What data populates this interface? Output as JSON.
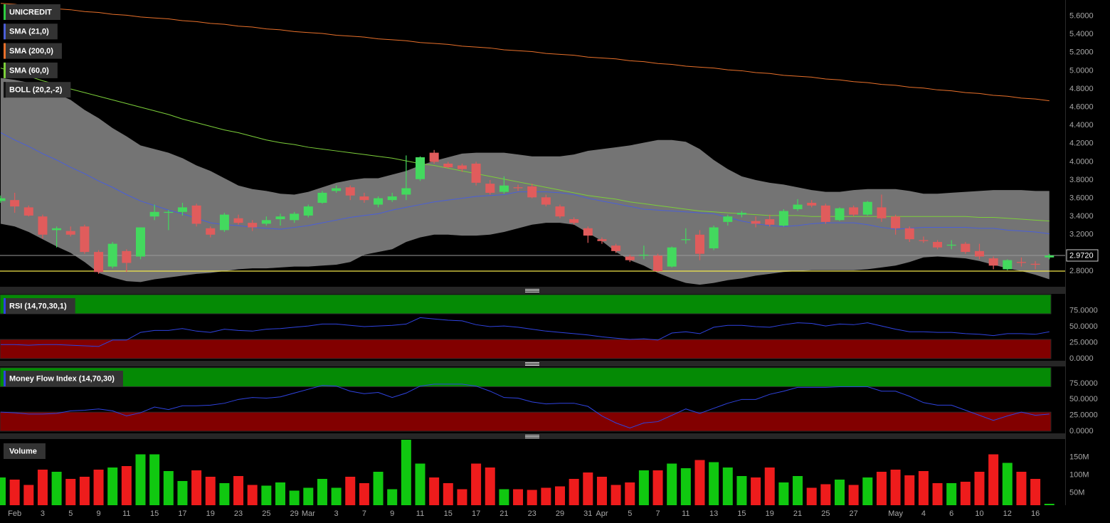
{
  "chart_data": [
    {
      "type": "candlestick",
      "name": "UNICREDIT",
      "color": "#2ecc40",
      "up_color": "#43d95e",
      "down_color": "#e05c5c",
      "categories": [
        null,
        "Feb",
        null,
        "3",
        null,
        "5",
        null,
        "9",
        null,
        "11",
        null,
        "15",
        null,
        "17",
        null,
        "19",
        null,
        "23",
        null,
        "25",
        null,
        "29",
        "Mar",
        null,
        "3",
        null,
        "7",
        null,
        "9",
        null,
        "11",
        null,
        "15",
        null,
        "17",
        null,
        "21",
        null,
        "23",
        null,
        "29",
        null,
        "31",
        "Apr",
        null,
        "5",
        null,
        "7",
        null,
        "11",
        null,
        "13",
        null,
        "15",
        null,
        "19",
        null,
        "21",
        null,
        "25",
        null,
        "27",
        null,
        null,
        "May",
        null,
        "4",
        null,
        "6",
        null,
        "10",
        null,
        "12",
        null,
        "16",
        null
      ],
      "open": [
        3.57,
        3.58,
        3.5,
        3.4,
        3.25,
        3.24,
        3.29,
        3.01,
        2.85,
        3.02,
        2.96,
        3.4,
        3.44,
        3.45,
        3.52,
        3.27,
        3.25,
        3.38,
        3.33,
        3.32,
        3.37,
        3.36,
        3.41,
        3.55,
        3.68,
        3.72,
        3.62,
        3.53,
        3.58,
        3.64,
        3.81,
        4.1,
        3.98,
        3.96,
        3.98,
        3.76,
        3.67,
        3.72,
        3.73,
        3.61,
        3.51,
        3.37,
        3.27,
        3.15,
        3.08,
        2.96,
        2.97,
        2.97,
        2.85,
        3.14,
        3.2,
        3.05,
        3.34,
        3.42,
        3.35,
        3.37,
        3.3,
        3.48,
        3.55,
        3.52,
        3.36,
        3.5,
        3.42,
        3.5,
        3.4,
        3.27,
        3.14,
        3.12,
        3.08,
        3.1,
        3.02,
        2.94,
        2.82,
        2.9,
        2.88,
        2.95
      ],
      "high": [
        3.63,
        3.66,
        3.52,
        3.42,
        3.29,
        3.29,
        3.31,
        3.03,
        3.12,
        3.04,
        3.28,
        3.53,
        3.47,
        3.55,
        3.54,
        3.29,
        3.44,
        3.42,
        3.36,
        3.4,
        3.43,
        3.45,
        3.53,
        3.68,
        3.74,
        3.74,
        3.66,
        3.62,
        3.66,
        4.07,
        4.06,
        4.13,
        4.0,
        3.98,
        4.0,
        3.8,
        3.84,
        3.75,
        3.76,
        3.64,
        3.53,
        3.39,
        3.29,
        3.17,
        3.1,
        2.98,
        3.08,
        2.99,
        3.07,
        3.27,
        3.25,
        3.3,
        3.42,
        3.46,
        3.4,
        3.42,
        3.48,
        3.59,
        3.58,
        3.54,
        3.5,
        3.52,
        3.57,
        3.64,
        3.42,
        3.29,
        3.18,
        3.14,
        3.14,
        3.12,
        3.1,
        2.96,
        2.93,
        2.95,
        2.91,
        2.99
      ],
      "low": [
        3.55,
        3.44,
        3.4,
        3.16,
        3.06,
        3.18,
        2.99,
        2.77,
        2.83,
        2.79,
        2.93,
        3.36,
        3.25,
        3.41,
        3.29,
        3.17,
        3.23,
        3.31,
        3.24,
        3.3,
        3.3,
        3.33,
        3.39,
        3.54,
        3.66,
        3.58,
        3.55,
        3.5,
        3.56,
        3.58,
        3.79,
        3.98,
        3.93,
        3.89,
        3.74,
        3.64,
        3.65,
        3.68,
        3.6,
        3.51,
        3.38,
        3.31,
        3.11,
        3.1,
        3.0,
        2.9,
        2.93,
        2.79,
        2.84,
        3.1,
        2.92,
        3.03,
        3.3,
        3.39,
        3.28,
        3.29,
        3.29,
        3.46,
        3.5,
        3.32,
        3.35,
        3.4,
        3.41,
        3.34,
        3.2,
        3.12,
        3.11,
        3.04,
        3.04,
        2.99,
        2.93,
        2.82,
        2.81,
        2.85,
        2.82,
        2.93
      ],
      "close": [
        3.6,
        3.51,
        3.41,
        3.2,
        3.27,
        3.2,
        3.01,
        2.79,
        3.1,
        2.89,
        3.28,
        3.45,
        3.45,
        3.5,
        3.32,
        3.2,
        3.42,
        3.33,
        3.28,
        3.36,
        3.4,
        3.43,
        3.51,
        3.66,
        3.71,
        3.63,
        3.58,
        3.6,
        3.62,
        3.71,
        4.05,
        4.0,
        3.94,
        3.92,
        3.77,
        3.66,
        3.74,
        3.71,
        3.61,
        3.53,
        3.4,
        3.33,
        3.19,
        3.13,
        3.02,
        2.92,
        2.98,
        2.8,
        3.06,
        3.15,
        2.99,
        3.28,
        3.4,
        3.44,
        3.32,
        3.31,
        3.46,
        3.53,
        3.52,
        3.34,
        3.49,
        3.42,
        3.56,
        3.38,
        3.27,
        3.15,
        3.13,
        3.06,
        3.09,
        3.01,
        2.96,
        2.86,
        2.92,
        2.89,
        2.87,
        2.972
      ],
      "overlays": [
        {
          "name": "SMA (21,0)",
          "color": "#4a5fd8",
          "values": [
            4.32,
            4.24,
            4.17,
            4.09,
            4.02,
            3.94,
            3.87,
            3.79,
            3.72,
            3.64,
            3.57,
            3.52,
            3.47,
            3.43,
            3.38,
            3.33,
            3.31,
            3.3,
            3.28,
            3.27,
            3.26,
            3.28,
            3.3,
            3.33,
            3.36,
            3.39,
            3.41,
            3.43,
            3.47,
            3.5,
            3.53,
            3.56,
            3.58,
            3.6,
            3.62,
            3.63,
            3.64,
            3.67,
            3.67,
            3.67,
            3.66,
            3.64,
            3.6,
            3.57,
            3.54,
            3.51,
            3.48,
            3.47,
            3.46,
            3.45,
            3.44,
            3.43,
            3.39,
            3.35,
            3.32,
            3.3,
            3.29,
            3.3,
            3.32,
            3.33,
            3.33,
            3.33,
            3.31,
            3.28,
            3.26,
            3.27,
            3.28,
            3.28,
            3.28,
            3.28,
            3.27,
            3.27,
            3.25,
            3.24,
            3.23,
            3.21
          ]
        },
        {
          "name": "SMA (200,0)",
          "color": "#e8702a",
          "values": [
            5.74,
            5.73,
            5.71,
            5.7,
            5.68,
            5.67,
            5.65,
            5.64,
            5.62,
            5.61,
            5.59,
            5.58,
            5.57,
            5.55,
            5.54,
            5.52,
            5.51,
            5.49,
            5.48,
            5.46,
            5.45,
            5.43,
            5.42,
            5.41,
            5.39,
            5.38,
            5.37,
            5.35,
            5.34,
            5.33,
            5.31,
            5.3,
            5.29,
            5.27,
            5.26,
            5.25,
            5.23,
            5.22,
            5.21,
            5.19,
            5.18,
            5.17,
            5.15,
            5.14,
            5.13,
            5.11,
            5.1,
            5.08,
            5.07,
            5.05,
            5.04,
            5.03,
            5.01,
            5.0,
            4.98,
            4.97,
            4.95,
            4.94,
            4.93,
            4.91,
            4.9,
            4.88,
            4.87,
            4.85,
            4.84,
            4.82,
            4.81,
            4.79,
            4.78,
            4.76,
            4.75,
            4.73,
            4.72,
            4.7,
            4.69,
            4.67
          ]
        },
        {
          "name": "SMA (60,0)",
          "color": "#7ccf3a",
          "values": [
            5.03,
            4.98,
            4.94,
            4.89,
            4.85,
            4.8,
            4.76,
            4.72,
            4.68,
            4.64,
            4.6,
            4.56,
            4.52,
            4.47,
            4.43,
            4.39,
            4.35,
            4.32,
            4.28,
            4.24,
            4.21,
            4.19,
            4.16,
            4.14,
            4.12,
            4.1,
            4.08,
            4.06,
            4.04,
            4.01,
            3.98,
            3.96,
            3.93,
            3.9,
            3.87,
            3.84,
            3.81,
            3.78,
            3.75,
            3.72,
            3.69,
            3.66,
            3.63,
            3.61,
            3.59,
            3.56,
            3.54,
            3.52,
            3.5,
            3.48,
            3.46,
            3.45,
            3.44,
            3.43,
            3.42,
            3.41,
            3.41,
            3.41,
            3.4,
            3.4,
            3.4,
            3.4,
            3.4,
            3.4,
            3.4,
            3.4,
            3.4,
            3.4,
            3.4,
            3.4,
            3.39,
            3.39,
            3.38,
            3.37,
            3.36,
            3.35
          ]
        }
      ],
      "band": {
        "name": "BOLL (20,2,-2)",
        "color": "#7a7a7a",
        "upper": [
          4.92,
          4.9,
          4.87,
          4.82,
          4.75,
          4.68,
          4.57,
          4.48,
          4.37,
          4.28,
          4.18,
          4.14,
          4.1,
          4.04,
          3.96,
          3.9,
          3.82,
          3.74,
          3.7,
          3.68,
          3.65,
          3.64,
          3.67,
          3.72,
          3.77,
          3.8,
          3.82,
          3.82,
          3.86,
          3.9,
          3.96,
          4.01,
          4.05,
          4.09,
          4.1,
          4.1,
          4.1,
          4.08,
          4.06,
          4.06,
          4.06,
          4.08,
          4.12,
          4.14,
          4.16,
          4.18,
          4.21,
          4.24,
          4.24,
          4.22,
          4.14,
          4.02,
          3.92,
          3.84,
          3.8,
          3.77,
          3.75,
          3.72,
          3.69,
          3.67,
          3.67,
          3.69,
          3.7,
          3.7,
          3.7,
          3.68,
          3.65,
          3.65,
          3.66,
          3.67,
          3.68,
          3.69,
          3.69,
          3.69,
          3.68,
          3.68
        ],
        "lower": [
          3.32,
          3.29,
          3.23,
          3.15,
          3.07,
          3.0,
          2.9,
          2.78,
          2.73,
          2.69,
          2.68,
          2.71,
          2.73,
          2.75,
          2.77,
          2.78,
          2.8,
          2.82,
          2.83,
          2.83,
          2.84,
          2.85,
          2.85,
          2.86,
          2.87,
          2.9,
          2.98,
          3.01,
          3.04,
          3.12,
          3.17,
          3.2,
          3.2,
          3.19,
          3.19,
          3.2,
          3.23,
          3.27,
          3.31,
          3.33,
          3.33,
          3.31,
          3.22,
          3.13,
          3.01,
          2.92,
          2.86,
          2.78,
          2.72,
          2.67,
          2.65,
          2.67,
          2.7,
          2.72,
          2.75,
          2.77,
          2.79,
          2.8,
          2.81,
          2.81,
          2.81,
          2.81,
          2.82,
          2.84,
          2.86,
          2.9,
          2.95,
          2.96,
          2.95,
          2.94,
          2.91,
          2.87,
          2.83,
          2.8,
          2.76,
          2.71
        ]
      },
      "support": 2.8,
      "support_color": "#f2e64a",
      "last_price": {
        "value": 2.972,
        "label": "2.9720"
      },
      "ylim": [
        2.628,
        5.777
      ],
      "yticks": [
        {
          "value": 2.8,
          "label": "2.8000"
        },
        {
          "value": 3.0,
          "label": "3.0000"
        },
        {
          "value": 3.2,
          "label": "3.2000"
        },
        {
          "value": 3.4,
          "label": "3.4000"
        },
        {
          "value": 3.6,
          "label": "3.6000"
        },
        {
          "value": 3.8,
          "label": "3.8000"
        },
        {
          "value": 4.0,
          "label": "4.0000"
        },
        {
          "value": 4.2,
          "label": "4.2000"
        },
        {
          "value": 4.4,
          "label": "4.4000"
        },
        {
          "value": 4.6,
          "label": "4.6000"
        },
        {
          "value": 4.8,
          "label": "4.8000"
        },
        {
          "value": 5.0,
          "label": "5.0000"
        },
        {
          "value": 5.2,
          "label": "5.2000"
        },
        {
          "value": 5.4,
          "label": "5.4000"
        },
        {
          "value": 5.6,
          "label": "5.6000"
        }
      ],
      "grid": true
    },
    {
      "type": "line",
      "name": "RSI (14,70,30,1)",
      "color": "#2f43e0",
      "values": [
        22,
        22,
        21,
        22,
        22,
        21,
        20,
        19,
        29,
        29,
        41,
        44,
        44,
        47,
        43,
        41,
        46,
        44,
        43,
        46,
        47,
        49,
        51,
        54,
        54,
        52,
        50,
        51,
        52,
        54,
        64,
        62,
        60,
        59,
        53,
        50,
        51,
        49,
        46,
        43,
        41,
        39,
        37,
        34,
        32,
        30,
        31,
        29,
        40,
        42,
        39,
        49,
        52,
        52,
        50,
        49,
        53,
        56,
        55,
        51,
        54,
        53,
        56,
        51,
        46,
        42,
        42,
        41,
        41,
        39,
        38,
        36,
        39,
        39,
        38,
        42
      ],
      "zones": [
        {
          "range": [
            70,
            100
          ],
          "color": "#058a05"
        },
        {
          "range": [
            0,
            30
          ],
          "color": "#820000"
        }
      ],
      "ylim": [
        -3.3,
        101.1
      ],
      "yticks": [
        {
          "value": 0,
          "label": "0.0000"
        },
        {
          "value": 25,
          "label": "25.0000"
        },
        {
          "value": 50,
          "label": "50.0000"
        },
        {
          "value": 75,
          "label": "75.0000"
        }
      ],
      "grid": true
    },
    {
      "type": "line",
      "name": "Money Flow Index (14,70,30)",
      "color": "#2f43e0",
      "values": [
        30,
        29,
        27,
        27,
        28,
        32,
        33,
        35,
        32,
        24,
        29,
        38,
        34,
        40,
        40,
        41,
        44,
        50,
        53,
        52,
        54,
        60,
        66,
        72,
        71,
        63,
        59,
        61,
        53,
        60,
        71,
        74,
        74,
        74,
        71,
        63,
        53,
        52,
        46,
        43,
        44,
        44,
        39,
        24,
        13,
        5,
        13,
        15,
        25,
        35,
        28,
        36,
        44,
        50,
        50,
        58,
        63,
        69,
        69,
        69,
        70,
        70,
        70,
        63,
        63,
        55,
        45,
        41,
        41,
        33,
        25,
        17,
        24,
        30,
        25,
        27
      ],
      "zones": [
        {
          "range": [
            70,
            100
          ],
          "color": "#058a05"
        },
        {
          "range": [
            0,
            30
          ],
          "color": "#820000"
        }
      ],
      "ylim": [
        -3.4,
        101.9
      ],
      "yticks": [
        {
          "value": 0,
          "label": "0.0000"
        },
        {
          "value": 25,
          "label": "25.0000"
        },
        {
          "value": 50,
          "label": "50.0000"
        },
        {
          "value": 75,
          "label": "75.0000"
        }
      ],
      "grid": true
    },
    {
      "type": "bar",
      "name": "Volume",
      "up_color": "#10c810",
      "down_color": "#ee1c1c",
      "values": [
        93000000,
        87000000,
        72000000,
        115000000,
        109000000,
        89000000,
        95000000,
        115000000,
        121000000,
        125000000,
        158000000,
        158000000,
        111000000,
        83000000,
        113000000,
        95000000,
        77000000,
        97000000,
        72000000,
        70000000,
        79000000,
        56000000,
        64000000,
        89000000,
        64000000,
        95000000,
        77000000,
        109000000,
        60000000,
        199000000,
        132000000,
        93000000,
        77000000,
        60000000,
        132000000,
        121000000,
        60000000,
        60000000,
        58000000,
        64000000,
        68000000,
        89000000,
        107000000,
        95000000,
        72000000,
        79000000,
        113000000,
        113000000,
        132000000,
        119000000,
        142000000,
        136000000,
        121000000,
        97000000,
        93000000,
        121000000,
        79000000,
        97000000,
        64000000,
        74000000,
        87000000,
        72000000,
        93000000,
        109000000,
        115000000,
        99000000,
        111000000,
        77000000,
        77000000,
        81000000,
        109000000,
        158000000,
        134000000,
        109000000,
        89000000,
        19000000
      ],
      "ylim": [
        15000000,
        201000000
      ],
      "yticks": [
        {
          "value": 50000000,
          "label": "50M"
        },
        {
          "value": 100000000,
          "label": "100M"
        },
        {
          "value": 150000000,
          "label": "150M"
        }
      ],
      "grid": true
    }
  ]
}
